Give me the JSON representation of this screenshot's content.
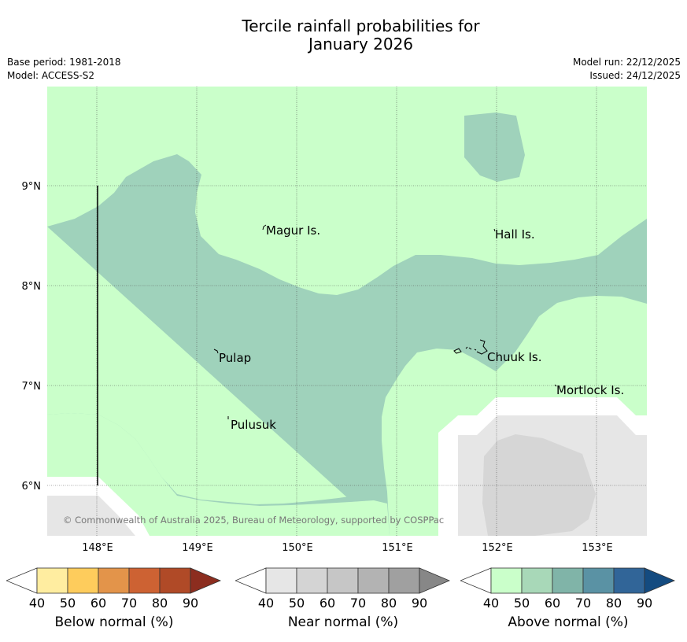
{
  "title_line1": "Tercile rainfall probabilities for",
  "title_line2": "January 2026",
  "meta_left": {
    "base_period": "Base period: 1981-2018",
    "model": "Model: ACCESS-S2"
  },
  "meta_right": {
    "model_run": "Model run: 22/12/2025",
    "issued": "Issued: 24/12/2025"
  },
  "map": {
    "lon_ticks": [
      "148°E",
      "149°E",
      "150°E",
      "151°E",
      "152°E",
      "153°E"
    ],
    "lat_ticks": [
      "9°N",
      "8°N",
      "7°N",
      "6°N"
    ],
    "places": [
      "Magur Is.",
      "Hall Is.",
      "Pulap",
      "Chuuk Is.",
      "Mortlock Is.",
      "Pulusuk"
    ],
    "copyright": "© Commonwealth of Australia 2025, Bureau of Meteorology, supported by COSPPac"
  },
  "colorbars": [
    {
      "label": "Below normal (%)",
      "ticks": [
        "40",
        "50",
        "60",
        "70",
        "80",
        "90"
      ],
      "colors": [
        "#ffeda0",
        "#fecc5c",
        "#e3944a",
        "#cd6233",
        "#b04a27",
        "#8c2d1f"
      ]
    },
    {
      "label": "Near normal (%)",
      "ticks": [
        "40",
        "50",
        "60",
        "70",
        "80",
        "90"
      ],
      "colors": [
        "#e6e6e6",
        "#d4d4d4",
        "#c6c6c6",
        "#b3b3b3",
        "#a0a0a0",
        "#878787"
      ]
    },
    {
      "label": "Above normal (%)",
      "ticks": [
        "40",
        "50",
        "60",
        "70",
        "80",
        "90"
      ],
      "colors": [
        "#caffca",
        "#a8d8b8",
        "#80b4a8",
        "#5a92a4",
        "#316598",
        "#144b80"
      ]
    }
  ],
  "palette": {
    "above_40": "#caffca",
    "above_50": "#9fd2bb",
    "near_40": "#e6e6e6",
    "near_50": "#d6d6d6"
  }
}
